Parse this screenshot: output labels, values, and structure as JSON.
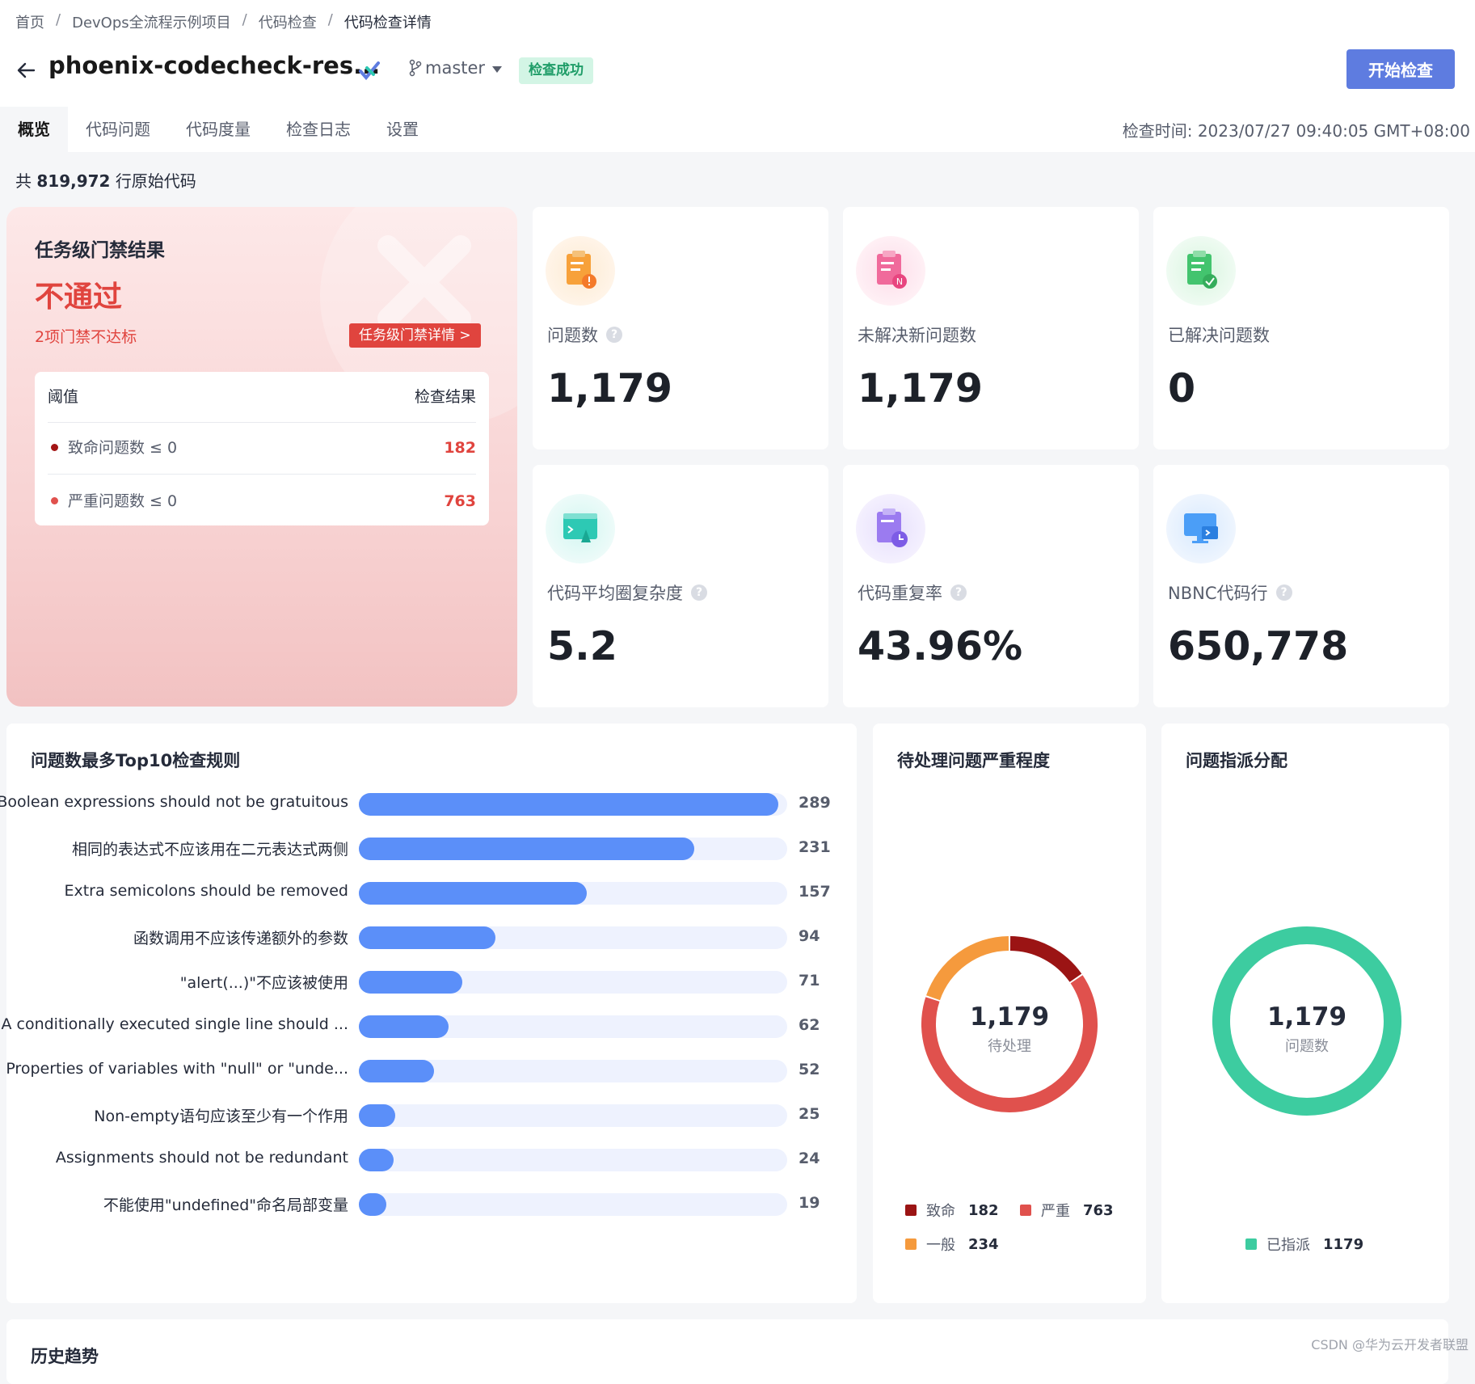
{
  "breadcrumb": [
    "首页",
    "DevOps全流程示例项目",
    "代码检查",
    "代码检查详情"
  ],
  "header": {
    "title": "phoenix-codecheck-res...",
    "branch": "master",
    "status_badge": "检查成功",
    "start_button": "开始检查"
  },
  "tabs": [
    "概览",
    "代码问题",
    "代码度量",
    "检查日志",
    "设置"
  ],
  "check_time": "检查时间: 2023/07/27 09:40:05 GMT+08:00",
  "loc": {
    "prefix": "共",
    "count": "819,972",
    "suffix": "行原始代码"
  },
  "gate": {
    "title": "任务级门禁结果",
    "result": "不通过",
    "subtitle": "2项门禁不达标",
    "detail_button": "任务级门禁详情  >",
    "table_header": {
      "threshold": "阈值",
      "result": "检查结果"
    },
    "rows": [
      {
        "label": "致命问题数  ≤ 0",
        "value": "182",
        "color": "#a31515"
      },
      {
        "label": "严重问题数  ≤ 0",
        "value": "763",
        "color": "#e0443e"
      }
    ]
  },
  "metrics": [
    {
      "label": "问题数",
      "value": "1,179",
      "help": true,
      "icon": "issue-clipboard-icon",
      "color": "#f7a13a"
    },
    {
      "label": "未解决新问题数",
      "value": "1,179",
      "help": false,
      "icon": "new-issue-icon",
      "color": "#f06a9b"
    },
    {
      "label": "已解决问题数",
      "value": "0",
      "help": false,
      "icon": "resolved-check-icon",
      "color": "#43c46e"
    },
    {
      "label": "代码平均圈复杂度",
      "value": "5.2",
      "help": true,
      "icon": "complexity-icon",
      "color": "#2dc9b4"
    },
    {
      "label": "代码重复率",
      "value": "43.96%",
      "help": true,
      "icon": "duplication-clock-icon",
      "color": "#9b7bf0"
    },
    {
      "label": "NBNC代码行",
      "value": "650,778",
      "help": true,
      "icon": "monitor-code-icon",
      "color": "#4b9ef7"
    }
  ],
  "top10": {
    "title": "问题数最多Top10检查规则",
    "max": 295,
    "rules": [
      {
        "label": "Boolean expressions should not be gratuitous",
        "value": 289
      },
      {
        "label": "相同的表达式不应该用在二元表达式两侧",
        "value": 231
      },
      {
        "label": "Extra semicolons should be removed",
        "value": 157
      },
      {
        "label": "函数调用不应该传递额外的参数",
        "value": 94
      },
      {
        "label": "\"alert(...)\"不应该被使用",
        "value": 71
      },
      {
        "label": "A conditionally executed single line should ...",
        "value": 62
      },
      {
        "label": "Properties of variables with \"null\" or \"unde...",
        "value": 52
      },
      {
        "label": "Non-empty语句应该至少有一个作用",
        "value": 25
      },
      {
        "label": "Assignments should not be redundant",
        "value": 24
      },
      {
        "label": "不能使用\"undefined\"命名局部变量",
        "value": 19
      }
    ]
  },
  "severity": {
    "title": "待处理问题严重程度",
    "total": "1,179",
    "total_label": "待处理",
    "segments": [
      {
        "name": "致命",
        "value": 182,
        "color": "#9b1414"
      },
      {
        "name": "严重",
        "value": 763,
        "color": "#e0514d"
      },
      {
        "name": "一般",
        "value": 234,
        "color": "#f59a3d"
      }
    ]
  },
  "assignment": {
    "title": "问题指派分配",
    "total": "1,179",
    "total_label": "问题数",
    "segments": [
      {
        "name": "已指派",
        "value": 1179,
        "color": "#3dcca0"
      }
    ]
  },
  "history": {
    "title": "历史趋势"
  },
  "watermark": "CSDN @华为云开发者联盟"
}
